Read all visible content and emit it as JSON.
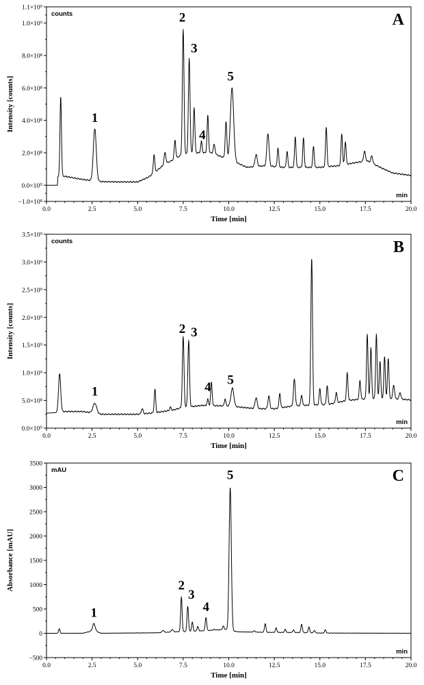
{
  "chart_data": [
    {
      "type": "line",
      "panel": "A",
      "corner_label": "counts",
      "ylabel": "Intensity [counts]",
      "xlabel": "Time [min]",
      "xunit": "min",
      "xlim": [
        0,
        20
      ],
      "ylim": [
        -100000000.0,
        1100000000.0
      ],
      "xticks": [
        0,
        2.5,
        5,
        7.5,
        10,
        12.5,
        15,
        17.5,
        20
      ],
      "xtick_labels": [
        "0.0",
        "2.5",
        "5.0",
        "7.5",
        "10.0",
        "12.5",
        "15.0",
        "17.5",
        "20.0"
      ],
      "yticks": [
        -100000000.0,
        0,
        200000000.0,
        400000000.0,
        600000000.0,
        800000000.0,
        1000000000.0,
        1100000000.0
      ],
      "ytick_labels": [
        "−1.0×10⁸",
        "0.0×10⁰",
        "2.0×10⁸",
        "4.0×10⁸",
        "6.0×10⁸",
        "8.0×10⁸",
        "1.0×10⁹",
        "1.1×10⁹"
      ],
      "baseline_points": [
        [
          0,
          0
        ],
        [
          0.6,
          0
        ],
        [
          0.62,
          55000000.0
        ],
        [
          1.0,
          55000000.0
        ],
        [
          2.0,
          35000000.0
        ],
        [
          3.0,
          22000000.0
        ],
        [
          4.0,
          20000000.0
        ],
        [
          5.0,
          20000000.0
        ],
        [
          5.6,
          50000000.0
        ],
        [
          6.5,
          130000000.0
        ],
        [
          7.0,
          160000000.0
        ],
        [
          7.3,
          180000000.0
        ],
        [
          8.0,
          200000000.0
        ],
        [
          9.0,
          200000000.0
        ],
        [
          10.0,
          160000000.0
        ],
        [
          11.0,
          110000000.0
        ],
        [
          12.0,
          120000000.0
        ],
        [
          13.0,
          110000000.0
        ],
        [
          14.0,
          110000000.0
        ],
        [
          15.0,
          110000000.0
        ],
        [
          16.0,
          120000000.0
        ],
        [
          17.0,
          140000000.0
        ],
        [
          17.6,
          150000000.0
        ],
        [
          18.5,
          100000000.0
        ],
        [
          19.0,
          75000000.0
        ],
        [
          20.0,
          60000000.0
        ]
      ],
      "peaks": [
        [
          0.78,
          550000000.0,
          0.04
        ],
        [
          2.65,
          350000000.0,
          0.08
        ],
        [
          5.9,
          190000000.0,
          0.04
        ],
        [
          6.5,
          200000000.0,
          0.05
        ],
        [
          7.05,
          280000000.0,
          0.04
        ],
        [
          7.5,
          960000000.0,
          0.045
        ],
        [
          7.83,
          780000000.0,
          0.045
        ],
        [
          8.1,
          480000000.0,
          0.04
        ],
        [
          8.5,
          270000000.0,
          0.04
        ],
        [
          8.85,
          430000000.0,
          0.04
        ],
        [
          9.2,
          250000000.0,
          0.05
        ],
        [
          9.85,
          390000000.0,
          0.045
        ],
        [
          10.18,
          600000000.0,
          0.09
        ],
        [
          11.5,
          190000000.0,
          0.06
        ],
        [
          12.15,
          320000000.0,
          0.06
        ],
        [
          12.7,
          230000000.0,
          0.04
        ],
        [
          13.2,
          210000000.0,
          0.04
        ],
        [
          13.65,
          300000000.0,
          0.04
        ],
        [
          14.1,
          290000000.0,
          0.04
        ],
        [
          14.65,
          240000000.0,
          0.04
        ],
        [
          15.35,
          360000000.0,
          0.04
        ],
        [
          16.2,
          320000000.0,
          0.04
        ],
        [
          16.4,
          270000000.0,
          0.04
        ],
        [
          17.45,
          210000000.0,
          0.05
        ],
        [
          17.85,
          180000000.0,
          0.05
        ]
      ],
      "annotations": [
        {
          "text": "1",
          "x": 2.65,
          "y": 390000000.0
        },
        {
          "text": "2",
          "x": 7.45,
          "y": 1010000000.0
        },
        {
          "text": "3",
          "x": 8.1,
          "y": 820000000.0
        },
        {
          "text": "4",
          "x": 8.55,
          "y": 285000000.0
        },
        {
          "text": "5",
          "x": 10.1,
          "y": 645000000.0
        }
      ]
    },
    {
      "type": "line",
      "panel": "B",
      "corner_label": "counts",
      "ylabel": "Intensity [counts]",
      "xlabel": "Time [min]",
      "xunit": "min",
      "xlim": [
        0,
        20
      ],
      "ylim": [
        0,
        3500000000.0
      ],
      "xticks": [
        0,
        2.5,
        5,
        7.5,
        10,
        12.5,
        15,
        17.5,
        20
      ],
      "xtick_labels": [
        "0.0",
        "2.5",
        "5.0",
        "7.5",
        "10.0",
        "12.5",
        "15.0",
        "17.5",
        "20.0"
      ],
      "yticks": [
        0,
        500000000.0,
        1000000000.0,
        1500000000.0,
        2000000000.0,
        2500000000.0,
        3000000000.0,
        3500000000.0
      ],
      "ytick_labels": [
        "0.0×10⁰",
        "5.0×10⁸",
        "1.0×10⁹",
        "1.5×10⁹",
        "2.0×10⁹",
        "2.5×10⁹",
        "3.0×10⁹",
        "3.5×10⁹"
      ],
      "baseline_points": [
        [
          0,
          270000000.0
        ],
        [
          0.5,
          280000000.0
        ],
        [
          1.0,
          300000000.0
        ],
        [
          2.0,
          300000000.0
        ],
        [
          3.0,
          250000000.0
        ],
        [
          5.0,
          250000000.0
        ],
        [
          6.0,
          280000000.0
        ],
        [
          7.0,
          330000000.0
        ],
        [
          7.3,
          360000000.0
        ],
        [
          8.5,
          410000000.0
        ],
        [
          10.0,
          400000000.0
        ],
        [
          11.5,
          350000000.0
        ],
        [
          12.5,
          350000000.0
        ],
        [
          13.5,
          400000000.0
        ],
        [
          14.0,
          410000000.0
        ],
        [
          15.5,
          430000000.0
        ],
        [
          16.5,
          500000000.0
        ],
        [
          17.5,
          530000000.0
        ],
        [
          18.5,
          540000000.0
        ],
        [
          19.0,
          530000000.0
        ],
        [
          20.0,
          510000000.0
        ]
      ],
      "peaks": [
        [
          0.72,
          980000000.0,
          0.06
        ],
        [
          2.65,
          450000000.0,
          0.1
        ],
        [
          5.25,
          350000000.0,
          0.05
        ],
        [
          5.95,
          700000000.0,
          0.04
        ],
        [
          6.8,
          380000000.0,
          0.04
        ],
        [
          7.5,
          1650000000.0,
          0.045
        ],
        [
          7.8,
          1580000000.0,
          0.045
        ],
        [
          8.85,
          520000000.0,
          0.04
        ],
        [
          9.05,
          830000000.0,
          0.04
        ],
        [
          9.8,
          530000000.0,
          0.04
        ],
        [
          10.2,
          720000000.0,
          0.08
        ],
        [
          11.5,
          550000000.0,
          0.06
        ],
        [
          12.2,
          580000000.0,
          0.05
        ],
        [
          12.8,
          630000000.0,
          0.04
        ],
        [
          13.6,
          880000000.0,
          0.05
        ],
        [
          14.0,
          600000000.0,
          0.04
        ],
        [
          14.55,
          3080000000.0,
          0.045
        ],
        [
          15.0,
          720000000.0,
          0.04
        ],
        [
          15.4,
          770000000.0,
          0.04
        ],
        [
          15.9,
          650000000.0,
          0.04
        ],
        [
          16.5,
          1000000000.0,
          0.04
        ],
        [
          17.2,
          860000000.0,
          0.04
        ],
        [
          17.6,
          1700000000.0,
          0.04
        ],
        [
          17.8,
          1450000000.0,
          0.04
        ],
        [
          18.1,
          1700000000.0,
          0.04
        ],
        [
          18.3,
          1200000000.0,
          0.04
        ],
        [
          18.55,
          1300000000.0,
          0.04
        ],
        [
          18.75,
          1270000000.0,
          0.04
        ],
        [
          19.05,
          770000000.0,
          0.05
        ],
        [
          19.4,
          640000000.0,
          0.05
        ]
      ],
      "annotations": [
        {
          "text": "1",
          "x": 2.65,
          "y": 590000000.0
        },
        {
          "text": "2",
          "x": 7.45,
          "y": 1720000000.0
        },
        {
          "text": "3",
          "x": 8.1,
          "y": 1660000000.0
        },
        {
          "text": "4",
          "x": 8.85,
          "y": 670000000.0
        },
        {
          "text": "5",
          "x": 10.1,
          "y": 800000000.0
        }
      ]
    },
    {
      "type": "line",
      "panel": "C",
      "corner_label": "mAU",
      "ylabel": "Absorbance [mAU]",
      "xlabel": "Time [min]",
      "xunit": "min",
      "xlim": [
        0,
        20
      ],
      "ylim": [
        -500,
        3500
      ],
      "xticks": [
        0,
        2.5,
        5,
        7.5,
        10,
        12.5,
        15,
        17.5,
        20
      ],
      "xtick_labels": [
        "0.0",
        "2.5",
        "5.0",
        "7.5",
        "10.0",
        "12.5",
        "15.0",
        "17.5",
        "20.0"
      ],
      "yticks": [
        -500,
        0,
        500,
        1000,
        1500,
        2000,
        2500,
        3000,
        3500
      ],
      "ytick_labels": [
        "−500",
        "0",
        "500",
        "1000",
        "1500",
        "2000",
        "2500",
        "3000",
        "3500"
      ],
      "baseline_points": [
        [
          0,
          0
        ],
        [
          2.0,
          0
        ],
        [
          2.6,
          60
        ],
        [
          3.0,
          0
        ],
        [
          6.0,
          10
        ],
        [
          7.0,
          30
        ],
        [
          8.0,
          40
        ],
        [
          9.0,
          60
        ],
        [
          9.8,
          80
        ],
        [
          10.5,
          30
        ],
        [
          12.0,
          20
        ],
        [
          14.0,
          15
        ],
        [
          15.0,
          5
        ],
        [
          20.0,
          0
        ]
      ],
      "peaks": [
        [
          0.7,
          90,
          0.04
        ],
        [
          2.6,
          200,
          0.07
        ],
        [
          6.4,
          60,
          0.05
        ],
        [
          6.9,
          80,
          0.05
        ],
        [
          7.4,
          750,
          0.04
        ],
        [
          7.75,
          560,
          0.04
        ],
        [
          8.0,
          230,
          0.04
        ],
        [
          8.3,
          140,
          0.04
        ],
        [
          8.75,
          330,
          0.04
        ],
        [
          9.2,
          80,
          0.05
        ],
        [
          9.7,
          150,
          0.04
        ],
        [
          10.08,
          3000,
          0.06
        ],
        [
          11.4,
          50,
          0.05
        ],
        [
          12.0,
          200,
          0.04
        ],
        [
          12.6,
          110,
          0.04
        ],
        [
          13.1,
          80,
          0.04
        ],
        [
          13.55,
          70,
          0.04
        ],
        [
          14.0,
          190,
          0.04
        ],
        [
          14.4,
          130,
          0.04
        ],
        [
          14.7,
          60,
          0.04
        ],
        [
          15.3,
          70,
          0.04
        ]
      ],
      "annotations": [
        {
          "text": "1",
          "x": 2.6,
          "y": 340
        },
        {
          "text": "2",
          "x": 7.4,
          "y": 900
        },
        {
          "text": "3",
          "x": 7.95,
          "y": 710
        },
        {
          "text": "4",
          "x": 8.75,
          "y": 460
        },
        {
          "text": "5",
          "x": 10.08,
          "y": 3170
        }
      ]
    }
  ]
}
